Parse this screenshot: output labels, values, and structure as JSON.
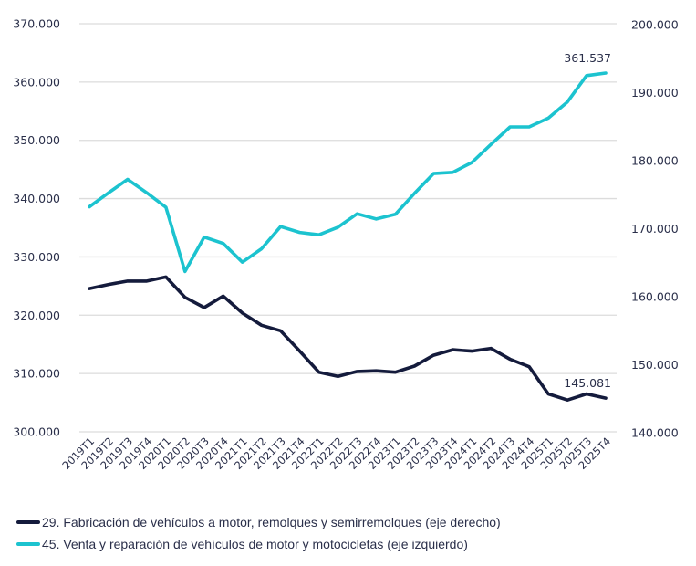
{
  "chart_data": {
    "type": "line",
    "title": "",
    "xlabel": "",
    "ylabel_left": "",
    "ylabel_right": "",
    "categories": [
      "2019T1",
      "2019T2",
      "2019T3",
      "2019T4",
      "2020T1",
      "2020T2",
      "2020T3",
      "2020T4",
      "2021T1",
      "2021T2",
      "2021T3",
      "2021T4",
      "2022T1",
      "2022T2",
      "2022T3",
      "2022T4",
      "2023T1",
      "2023T2",
      "2023T3",
      "2023T4",
      "2024T1",
      "2024T2",
      "2024T3",
      "2024T4",
      "2025T1",
      "2025T2",
      "2025T3",
      "2025T4"
    ],
    "y_left": {
      "min": 300000,
      "max": 370000,
      "step": 10000,
      "ticks": [
        "300.000",
        "310.000",
        "320.000",
        "330.000",
        "340.000",
        "350.000",
        "360.000",
        "370.000"
      ]
    },
    "y_right": {
      "min": 140000,
      "max": 200000,
      "step": 10000,
      "ticks": [
        "140.000",
        "150.000",
        "160.000",
        "170.000",
        "180.000",
        "190.000",
        "200.000"
      ]
    },
    "grid": true,
    "legend_position": "bottom-left",
    "series": [
      {
        "name": "29. Fabricación de vehículos a motor, remolques y semirremolques (eje derecho)",
        "axis": "right",
        "color": "#141b3c",
        "values": [
          161200,
          161800,
          162300,
          162300,
          162900,
          159900,
          158400,
          160100,
          157600,
          155800,
          155000,
          152000,
          148900,
          148300,
          149000,
          149100,
          148900,
          149800,
          151400,
          152200,
          152000,
          152400,
          150800,
          149700,
          145700,
          144800,
          145700,
          145081
        ],
        "end_label": "145.081"
      },
      {
        "name": "45. Venta y reparación de vehículos de motor y motocicletas (eje izquierdo)",
        "axis": "left",
        "color": "#1cc3cf",
        "values": [
          338600,
          341000,
          343300,
          341000,
          338500,
          327500,
          333400,
          332300,
          329100,
          331400,
          335200,
          334200,
          333800,
          335100,
          337400,
          336500,
          337300,
          340900,
          344300,
          344500,
          346200,
          349300,
          352300,
          352300,
          353800,
          356600,
          361100,
          361537
        ],
        "end_label": "361.537"
      }
    ]
  },
  "legend": {
    "items": [
      {
        "label": "29. Fabricación de vehículos a motor, remolques y semirremolques (eje derecho)",
        "color": "#141b3c"
      },
      {
        "label": "45. Venta y reparación de vehículos de motor y motocicletas (eje izquierdo)",
        "color": "#1cc3cf"
      }
    ]
  }
}
